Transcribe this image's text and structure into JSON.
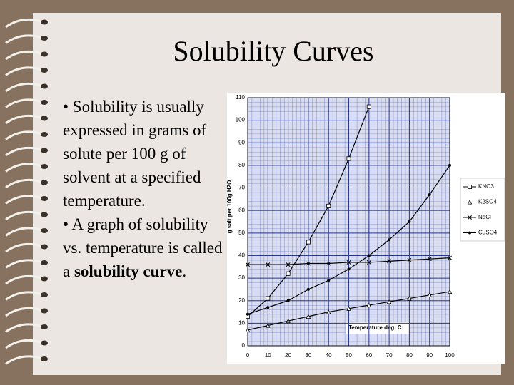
{
  "title": "Solubility Curves",
  "bullets": [
    {
      "parts": [
        {
          "text": "• Solubility is usually expressed in grams of solute per 100 g of solvent at a specified temperature.",
          "bold": false
        }
      ]
    },
    {
      "parts": [
        {
          "text": "• A graph of solubility vs. temperature is called a ",
          "bold": false
        },
        {
          "text": "solubility curve",
          "bold": true
        },
        {
          "text": ".",
          "bold": false
        }
      ]
    }
  ],
  "chart_data": {
    "type": "line",
    "ylabel": "g salt per 100g H2O",
    "annotation": "Temperature deg. C",
    "x": [
      0,
      10,
      20,
      30,
      40,
      50,
      60,
      70,
      80,
      90,
      100
    ],
    "xlim": [
      0,
      100
    ],
    "xticks": [
      0,
      10,
      20,
      30,
      40,
      50,
      60,
      70,
      80,
      90,
      100
    ],
    "ylim": [
      0,
      110
    ],
    "yticks": [
      0,
      10,
      20,
      30,
      40,
      50,
      60,
      70,
      80,
      90,
      100,
      110
    ],
    "grid": true,
    "legend": "right",
    "series": [
      {
        "name": "KNO3",
        "color": "#000000",
        "marker": "square",
        "values": [
          13,
          21,
          32,
          46,
          62,
          83,
          106,
          null,
          null,
          null,
          null
        ]
      },
      {
        "name": "K2SO4",
        "color": "#000000",
        "marker": "triangle",
        "values": [
          7,
          9,
          11,
          13,
          15,
          16.5,
          18,
          19.5,
          21,
          22.5,
          24
        ]
      },
      {
        "name": "NaCl",
        "color": "#000000",
        "marker": "x",
        "values": [
          36,
          36,
          36,
          36.5,
          36.5,
          37,
          37,
          37.5,
          38,
          38.5,
          39
        ]
      },
      {
        "name": "CuSO4",
        "color": "#000000",
        "marker": "circle",
        "values": [
          14,
          17,
          20,
          25,
          29,
          34,
          40,
          47,
          55,
          67,
          80
        ]
      }
    ]
  }
}
